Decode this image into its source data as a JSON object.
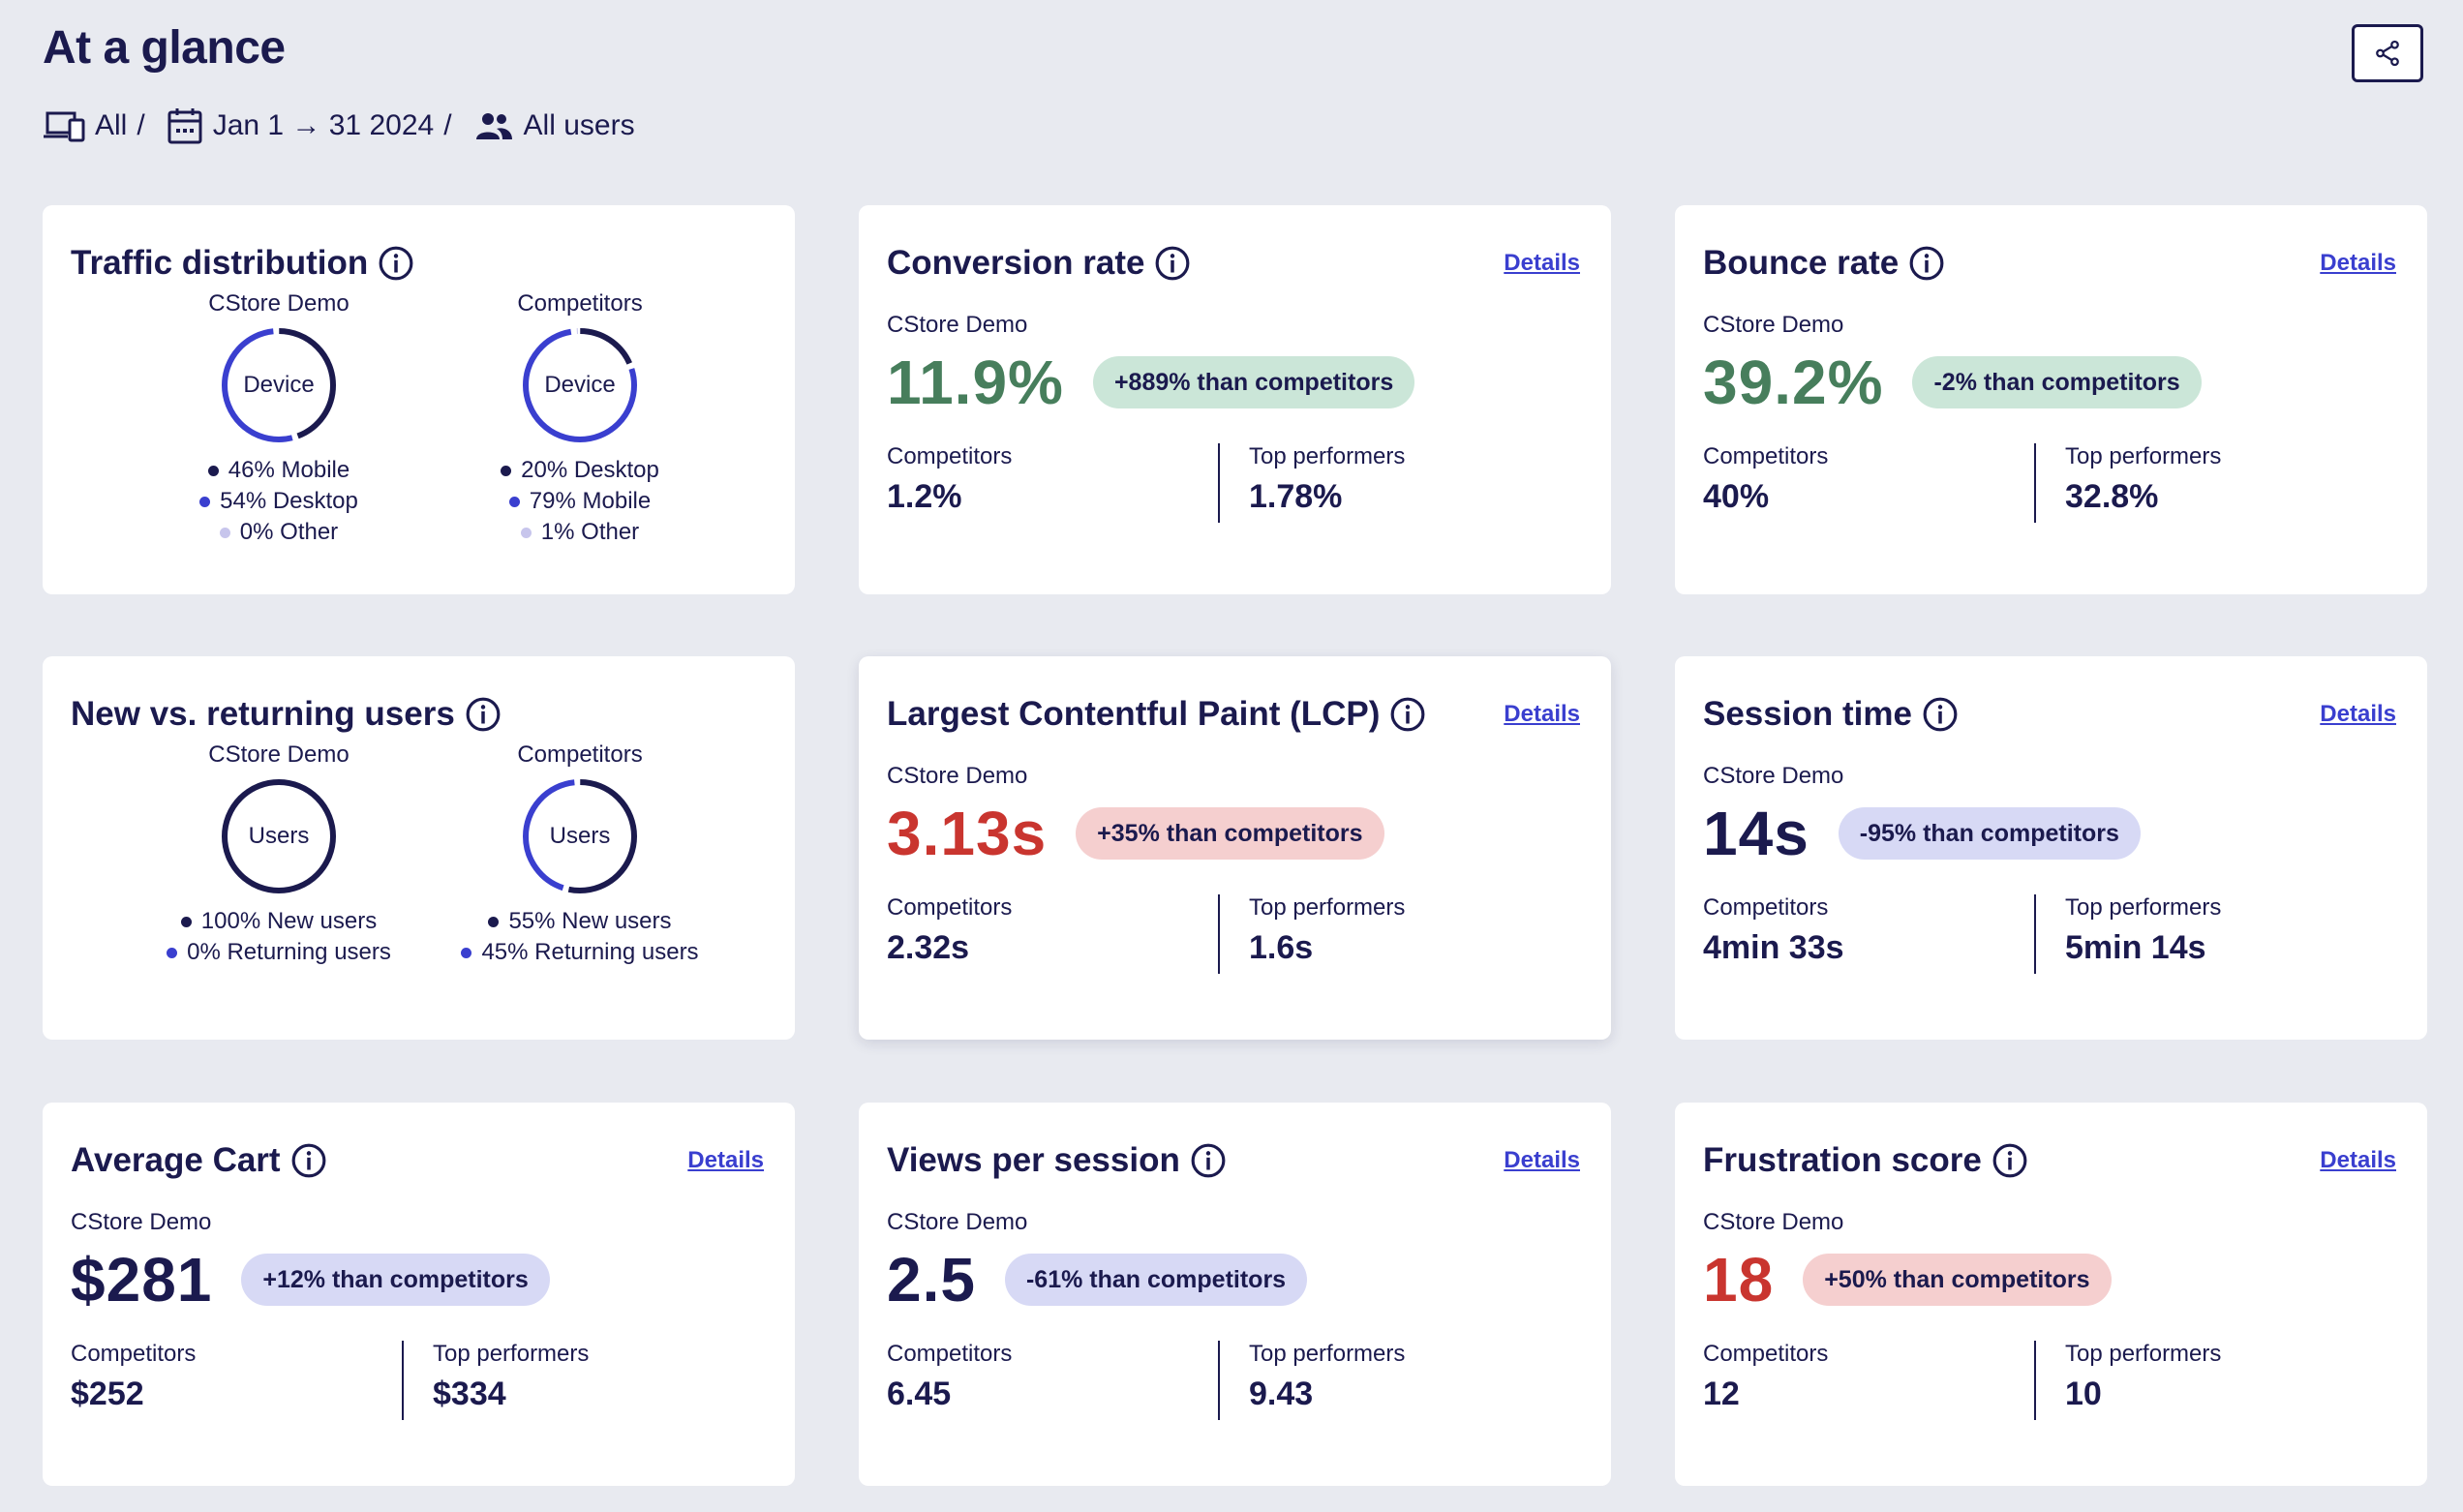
{
  "header": {
    "title": "At a glance",
    "filters": {
      "device": "All",
      "date": "Jan 1 → 31 2024",
      "segment": "All users"
    }
  },
  "colors": {
    "navy": "#1b1a4e",
    "blue": "#3a3fcf",
    "light_purple": "#c7c5ec",
    "green": "#477e5c",
    "red": "#c9352f"
  },
  "traffic": {
    "title": "Traffic distribution",
    "cstore": {
      "label": "CStore Demo",
      "center": "Device",
      "items": [
        {
          "text": "46% Mobile",
          "value": 46,
          "color": "#1b1a4e"
        },
        {
          "text": "54% Desktop",
          "value": 54,
          "color": "#3a3fcf"
        },
        {
          "text": "0% Other",
          "value": 0,
          "color": "#c7c5ec"
        }
      ]
    },
    "competitors": {
      "label": "Competitors",
      "center": "Device",
      "items": [
        {
          "text": "20% Desktop",
          "value": 20,
          "color": "#1b1a4e"
        },
        {
          "text": "79% Mobile",
          "value": 79,
          "color": "#3a3fcf"
        },
        {
          "text": "1% Other",
          "value": 1,
          "color": "#c7c5ec"
        }
      ]
    }
  },
  "new_returning": {
    "title": "New vs. returning users",
    "cstore": {
      "label": "CStore Demo",
      "center": "Users",
      "items": [
        {
          "text": "100% New users",
          "value": 100,
          "color": "#1b1a4e"
        },
        {
          "text": "0% Returning users",
          "value": 0,
          "color": "#3a3fcf"
        }
      ]
    },
    "competitors": {
      "label": "Competitors",
      "center": "Users",
      "items": [
        {
          "text": "55% New users",
          "value": 55,
          "color": "#1b1a4e"
        },
        {
          "text": "45% Returning users",
          "value": 45,
          "color": "#3a3fcf"
        }
      ]
    }
  },
  "metrics": {
    "details_label": "Details",
    "site_label": "CStore Demo",
    "competitors_label": "Competitors",
    "top_label": "Top performers",
    "conversion": {
      "title": "Conversion rate",
      "value": "11.9%",
      "pill": "+889% than competitors",
      "competitors": "1.2%",
      "top": "1.78%"
    },
    "bounce": {
      "title": "Bounce rate",
      "value": "39.2%",
      "pill": "-2% than competitors",
      "competitors": "40%",
      "top": "32.8%"
    },
    "lcp": {
      "title": "Largest Contentful Paint (LCP)",
      "value": "3.13s",
      "pill": "+35% than competitors",
      "competitors": "2.32s",
      "top": "1.6s"
    },
    "session": {
      "title": "Session time",
      "value": "14s",
      "pill": "-95% than competitors",
      "competitors": "4min 33s",
      "top": "5min 14s"
    },
    "cart": {
      "title": "Average Cart",
      "value": "$281",
      "pill": "+12% than competitors",
      "competitors": "$252",
      "top": "$334"
    },
    "views": {
      "title": "Views per session",
      "value": "2.5",
      "pill": "-61% than competitors",
      "competitors": "6.45",
      "top": "9.43"
    },
    "frustration": {
      "title": "Frustration score",
      "value": "18",
      "pill": "+50% than competitors",
      "competitors": "12",
      "top": "10"
    }
  }
}
